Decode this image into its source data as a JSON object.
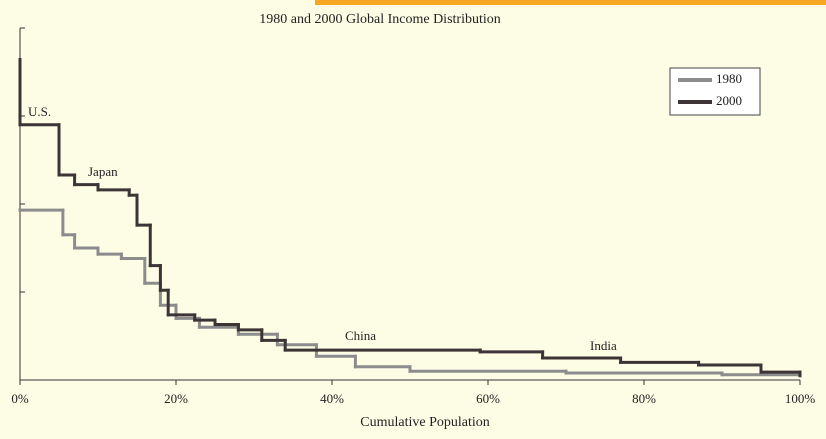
{
  "chart_data": {
    "type": "step",
    "title": "1980 and 2000 Global Income Distribution",
    "x_label": "Cumulative Population",
    "xlim": [
      0,
      100
    ],
    "xticks": [
      {
        "value": 0,
        "label": "0%"
      },
      {
        "value": 20,
        "label": "20%"
      },
      {
        "value": 40,
        "label": "40%"
      },
      {
        "value": 60,
        "label": "60%"
      },
      {
        "value": 80,
        "label": "80%"
      },
      {
        "value": 100,
        "label": "100%"
      }
    ],
    "ylim": [
      0,
      4
    ],
    "yticks": [
      0,
      1,
      2,
      3,
      4
    ],
    "legend": "top-right",
    "annotations": [
      "U.S.",
      "Japan",
      "China",
      "India"
    ],
    "series": [
      {
        "name": "1980",
        "color": "#8c8c8c",
        "x": [
          0,
          5.5,
          7,
          10,
          13,
          16,
          18,
          20,
          23,
          28,
          33,
          38,
          43,
          50,
          70,
          90,
          100
        ],
        "values": [
          1.93,
          1.65,
          1.5,
          1.43,
          1.38,
          1.1,
          0.85,
          0.7,
          0.6,
          0.52,
          0.4,
          0.27,
          0.15,
          0.1,
          0.08,
          0.06,
          0.05
        ]
      },
      {
        "name": "2000",
        "color": "#3d3535",
        "x": [
          0,
          0,
          5,
          7,
          10,
          14,
          15,
          16.7,
          18,
          19,
          22.4,
          25,
          28,
          31,
          34,
          59,
          67,
          77,
          87,
          95,
          100
        ],
        "values": [
          3.64,
          2.9,
          2.33,
          2.22,
          2.16,
          2.1,
          1.76,
          1.3,
          1.02,
          0.74,
          0.68,
          0.63,
          0.57,
          0.45,
          0.34,
          0.32,
          0.25,
          0.2,
          0.17,
          0.09,
          0.05
        ]
      }
    ]
  }
}
